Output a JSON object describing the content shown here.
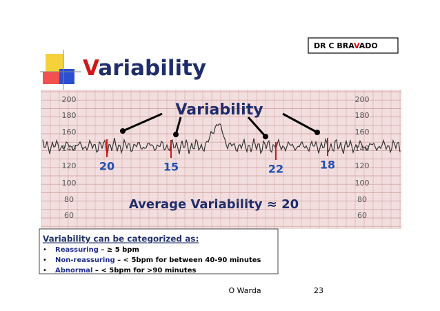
{
  "header": {
    "author_parts": [
      "DR C  BRA",
      "V",
      "ADO"
    ]
  },
  "title": {
    "first_letter": "V",
    "rest": "ariability"
  },
  "figure": {
    "heading": "Variability",
    "scale_left": [
      "200",
      "180",
      "160",
      "140",
      "120",
      "100",
      "80",
      "60"
    ],
    "scale_right": [
      "200",
      "180",
      "160",
      "140",
      "120",
      "100",
      "80",
      "60"
    ],
    "examples": [
      "20",
      "15",
      "22",
      "18"
    ],
    "caption": "Average Variability ≈ 20"
  },
  "box": {
    "heading": "Variability can be categorized as:",
    "items": [
      {
        "bullet": "•",
        "label": "Reassuring",
        "detail": " – ≥ 5 bpm"
      },
      {
        "bullet": "•",
        "label": "Non-reassuring",
        "detail": " – < 5bpm for between 40-90 minutes"
      },
      {
        "bullet": "•",
        "label": "Abnormal",
        "detail": " – < 5bpm for >90 minutes"
      }
    ]
  },
  "footer": {
    "presenter": "O Warda",
    "page": "23"
  }
}
